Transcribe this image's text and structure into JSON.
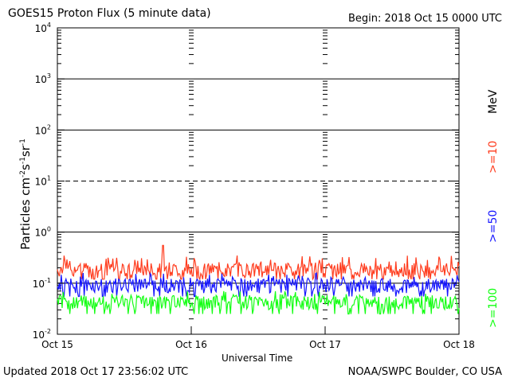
{
  "chart_data": {
    "type": "line",
    "title": "GOES15 Proton Flux (5 minute data)",
    "begin": "Begin: 2018 Oct 15 0000 UTC",
    "xlabel": "Universal Time",
    "ylabel": "Particles cm",
    "ylabel_units": [
      "-2",
      "s",
      "-1",
      "sr",
      "-1"
    ],
    "yscale": "log",
    "ylim_exp": [
      -2,
      4
    ],
    "y_ticks": [
      {
        "base": "10",
        "exp": "-2",
        "e": -2
      },
      {
        "base": "10",
        "exp": "-1",
        "e": -1
      },
      {
        "base": "10",
        "exp": "0",
        "e": 0
      },
      {
        "base": "10",
        "exp": "1",
        "e": 1
      },
      {
        "base": "10",
        "exp": "2",
        "e": 2
      },
      {
        "base": "10",
        "exp": "3",
        "e": 3
      },
      {
        "base": "10",
        "exp": "4",
        "e": 4
      }
    ],
    "x_ticks": [
      "Oct 15",
      "Oct 16",
      "Oct 17",
      "Oct 18"
    ],
    "units": "MeV",
    "series": [
      {
        "name": ">=10",
        "color": "#ff3c1e",
        "baseline": 0.17,
        "range": [
          0.12,
          0.35
        ]
      },
      {
        "name": ">=50",
        "color": "#1414ff",
        "baseline": 0.085,
        "range": [
          0.055,
          0.16
        ]
      },
      {
        "name": ">=100",
        "color": "#14ff14",
        "baseline": 0.04,
        "range": [
          0.025,
          0.07
        ]
      }
    ],
    "grid": "horizontal solid at decades, dashed at 10^1",
    "legend_placement": "right"
  },
  "footer": {
    "updated": "Updated 2018 Oct 17 23:56:02 UTC",
    "credit": "NOAA/SWPC Boulder, CO USA"
  }
}
